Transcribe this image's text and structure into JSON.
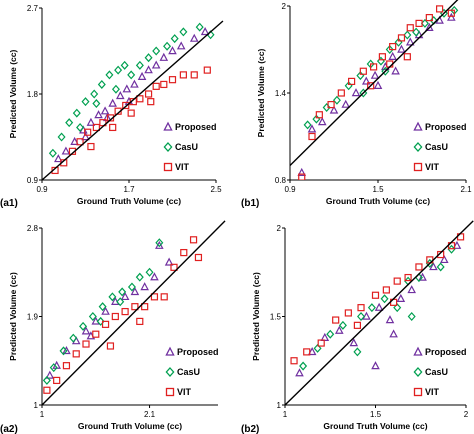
{
  "chart_data": [
    {
      "panel": "(a1)",
      "type": "scatter",
      "xlabel": "Ground Truth Volume (cc)",
      "ylabel": "Predicted Volume (cc)",
      "xlim": [
        0.9,
        2.5
      ],
      "ylim": [
        0.9,
        2.7
      ],
      "xticks": [
        "0.9",
        "1.7",
        "2.5"
      ],
      "yticks": [
        "0.9",
        "1.8",
        "2.7"
      ],
      "identity_line": true,
      "legend_position": "bottom-right",
      "series": [
        {
          "name": "Proposed",
          "color": "#7030A0",
          "marker": "triangle",
          "points": [
            [
              1.05,
              1.12
            ],
            [
              1.12,
              1.2
            ],
            [
              1.2,
              1.3
            ],
            [
              1.28,
              1.42
            ],
            [
              1.35,
              1.5
            ],
            [
              1.42,
              1.58
            ],
            [
              1.48,
              1.62
            ],
            [
              1.55,
              1.7
            ],
            [
              1.62,
              1.78
            ],
            [
              1.68,
              1.85
            ],
            [
              1.75,
              1.9
            ],
            [
              1.82,
              1.98
            ],
            [
              1.88,
              2.05
            ],
            [
              1.95,
              2.1
            ],
            [
              2.02,
              2.18
            ],
            [
              2.1,
              2.25
            ],
            [
              2.18,
              2.3
            ],
            [
              2.3,
              2.38
            ],
            [
              2.4,
              2.45
            ],
            [
              1.3,
              1.35
            ],
            [
              1.5,
              1.55
            ],
            [
              1.7,
              1.72
            ]
          ]
        },
        {
          "name": "CasU",
          "color": "#00A050",
          "marker": "diamond",
          "points": [
            [
              1.0,
              1.18
            ],
            [
              1.08,
              1.35
            ],
            [
              1.15,
              1.5
            ],
            [
              1.22,
              1.6
            ],
            [
              1.3,
              1.72
            ],
            [
              1.38,
              1.8
            ],
            [
              1.45,
              1.9
            ],
            [
              1.52,
              2.0
            ],
            [
              1.6,
              2.05
            ],
            [
              1.66,
              2.1
            ],
            [
              1.72,
              2.0
            ],
            [
              1.8,
              2.1
            ],
            [
              1.88,
              2.18
            ],
            [
              1.95,
              2.25
            ],
            [
              2.05,
              2.3
            ],
            [
              2.12,
              2.38
            ],
            [
              2.2,
              2.45
            ],
            [
              2.35,
              2.5
            ],
            [
              2.45,
              2.42
            ],
            [
              1.25,
              1.45
            ],
            [
              1.4,
              1.7
            ],
            [
              1.58,
              1.85
            ]
          ]
        },
        {
          "name": "VIT",
          "color": "#E02020",
          "marker": "square",
          "points": [
            [
              1.02,
              1.0
            ],
            [
              1.1,
              1.08
            ],
            [
              1.18,
              1.2
            ],
            [
              1.25,
              1.3
            ],
            [
              1.32,
              1.4
            ],
            [
              1.4,
              1.45
            ],
            [
              1.46,
              1.5
            ],
            [
              1.53,
              1.55
            ],
            [
              1.6,
              1.62
            ],
            [
              1.67,
              1.68
            ],
            [
              1.74,
              1.72
            ],
            [
              1.8,
              1.75
            ],
            [
              1.88,
              1.8
            ],
            [
              1.95,
              1.88
            ],
            [
              2.02,
              1.9
            ],
            [
              2.1,
              1.95
            ],
            [
              2.2,
              2.0
            ],
            [
              2.3,
              2.0
            ],
            [
              2.42,
              2.05
            ],
            [
              1.35,
              1.25
            ],
            [
              1.55,
              1.45
            ],
            [
              1.72,
              1.6
            ],
            [
              1.9,
              1.72
            ]
          ]
        }
      ]
    },
    {
      "panel": "(b1)",
      "type": "scatter",
      "xlabel": "Ground Truth Volume (cc)",
      "ylabel": "Predicted Volume (cc)",
      "xlim": [
        0.9,
        2.1
      ],
      "ylim": [
        0.8,
        2.0
      ],
      "xticks": [
        "0.9",
        "1.5",
        "2.1"
      ],
      "yticks": [
        "0.8",
        "1.4",
        "2"
      ],
      "identity_line": true,
      "legend_position": "bottom-right",
      "series": [
        {
          "name": "Proposed",
          "color": "#7030A0",
          "marker": "triangle",
          "points": [
            [
              0.98,
              0.85
            ],
            [
              1.05,
              1.15
            ],
            [
              1.12,
              1.2
            ],
            [
              1.2,
              1.28
            ],
            [
              1.28,
              1.32
            ],
            [
              1.35,
              1.4
            ],
            [
              1.42,
              1.48
            ],
            [
              1.48,
              1.52
            ],
            [
              1.55,
              1.58
            ],
            [
              1.6,
              1.65
            ],
            [
              1.66,
              1.7
            ],
            [
              1.72,
              1.75
            ],
            [
              1.78,
              1.8
            ],
            [
              1.85,
              1.85
            ],
            [
              1.92,
              1.9
            ],
            [
              2.0,
              1.92
            ],
            [
              1.5,
              1.45
            ],
            [
              1.62,
              1.55
            ]
          ]
        },
        {
          "name": "CasU",
          "color": "#00A050",
          "marker": "diamond",
          "points": [
            [
              1.02,
              1.18
            ],
            [
              1.08,
              1.22
            ],
            [
              1.15,
              1.3
            ],
            [
              1.22,
              1.35
            ],
            [
              1.3,
              1.45
            ],
            [
              1.38,
              1.52
            ],
            [
              1.45,
              1.6
            ],
            [
              1.52,
              1.62
            ],
            [
              1.58,
              1.7
            ],
            [
              1.64,
              1.75
            ],
            [
              1.7,
              1.8
            ],
            [
              1.76,
              1.82
            ],
            [
              1.82,
              1.88
            ],
            [
              1.88,
              1.9
            ],
            [
              1.95,
              1.95
            ],
            [
              2.02,
              1.97
            ],
            [
              1.4,
              1.4
            ],
            [
              1.55,
              1.55
            ]
          ]
        },
        {
          "name": "VIT",
          "color": "#E02020",
          "marker": "square",
          "points": [
            [
              0.98,
              0.82
            ],
            [
              1.05,
              1.1
            ],
            [
              1.1,
              1.25
            ],
            [
              1.18,
              1.32
            ],
            [
              1.25,
              1.4
            ],
            [
              1.32,
              1.48
            ],
            [
              1.4,
              1.55
            ],
            [
              1.47,
              1.58
            ],
            [
              1.53,
              1.65
            ],
            [
              1.6,
              1.72
            ],
            [
              1.66,
              1.78
            ],
            [
              1.72,
              1.85
            ],
            [
              1.78,
              1.88
            ],
            [
              1.85,
              1.92
            ],
            [
              1.92,
              1.98
            ],
            [
              2.0,
              1.95
            ],
            [
              1.45,
              1.45
            ],
            [
              1.58,
              1.6
            ],
            [
              1.7,
              1.65
            ]
          ]
        }
      ]
    },
    {
      "panel": "(a2)",
      "type": "scatter",
      "xlabel": "Ground Truth Volume (cc)",
      "ylabel": "Predicted Volume (cc)",
      "xlim": [
        1.0,
        2.8
      ],
      "ylim": [
        1.0,
        2.8
      ],
      "xticks": [
        "1",
        "2.1"
      ],
      "yticks": [
        "1",
        "1.9",
        "2.8"
      ],
      "identity_line": true,
      "legend_position": "bottom-right",
      "series": [
        {
          "name": "Proposed",
          "color": "#7030A0",
          "marker": "triangle",
          "points": [
            [
              1.08,
              1.3
            ],
            [
              1.15,
              1.4
            ],
            [
              1.25,
              1.55
            ],
            [
              1.35,
              1.65
            ],
            [
              1.45,
              1.75
            ],
            [
              1.55,
              1.85
            ],
            [
              1.65,
              1.95
            ],
            [
              1.75,
              2.05
            ],
            [
              1.85,
              2.1
            ],
            [
              1.95,
              2.15
            ],
            [
              2.05,
              2.2
            ],
            [
              2.15,
              2.3
            ],
            [
              2.2,
              2.62
            ],
            [
              2.3,
              2.45
            ],
            [
              1.5,
              1.7
            ]
          ]
        },
        {
          "name": "CasU",
          "color": "#00A050",
          "marker": "diamond",
          "points": [
            [
              1.05,
              1.25
            ],
            [
              1.12,
              1.38
            ],
            [
              1.22,
              1.55
            ],
            [
              1.32,
              1.68
            ],
            [
              1.42,
              1.8
            ],
            [
              1.52,
              1.9
            ],
            [
              1.62,
              2.0
            ],
            [
              1.72,
              2.1
            ],
            [
              1.82,
              2.15
            ],
            [
              1.92,
              2.2
            ],
            [
              2.0,
              2.3
            ],
            [
              2.1,
              2.35
            ],
            [
              2.2,
              2.65
            ],
            [
              1.6,
              1.85
            ],
            [
              1.8,
              2.05
            ]
          ]
        },
        {
          "name": "VIT",
          "color": "#E02020",
          "marker": "square",
          "points": [
            [
              1.05,
              1.15
            ],
            [
              1.15,
              1.25
            ],
            [
              1.25,
              1.4
            ],
            [
              1.35,
              1.52
            ],
            [
              1.45,
              1.62
            ],
            [
              1.55,
              1.72
            ],
            [
              1.65,
              1.82
            ],
            [
              1.75,
              1.9
            ],
            [
              1.85,
              1.95
            ],
            [
              1.95,
              2.0
            ],
            [
              2.05,
              2.0
            ],
            [
              2.15,
              2.1
            ],
            [
              2.25,
              2.1
            ],
            [
              2.35,
              2.4
            ],
            [
              2.45,
              2.55
            ],
            [
              2.55,
              2.68
            ],
            [
              2.6,
              2.5
            ],
            [
              1.7,
              1.6
            ],
            [
              2.0,
              1.85
            ]
          ]
        }
      ]
    },
    {
      "panel": "(b2)",
      "type": "scatter",
      "xlabel": "Ground Truth Volume (cc)",
      "ylabel": "Predicted Volume (cc)",
      "xlim": [
        1.0,
        2.0
      ],
      "ylim": [
        1.0,
        2.0
      ],
      "xticks": [
        "1",
        "1.5",
        "2"
      ],
      "yticks": [
        "1",
        "1.5",
        "2"
      ],
      "identity_line": true,
      "legend_position": "bottom-right",
      "series": [
        {
          "name": "Proposed",
          "color": "#7030A0",
          "marker": "triangle",
          "points": [
            [
              1.08,
              1.18
            ],
            [
              1.15,
              1.3
            ],
            [
              1.22,
              1.38
            ],
            [
              1.3,
              1.42
            ],
            [
              1.38,
              1.35
            ],
            [
              1.45,
              1.5
            ],
            [
              1.52,
              1.55
            ],
            [
              1.58,
              1.48
            ],
            [
              1.64,
              1.6
            ],
            [
              1.7,
              1.65
            ],
            [
              1.76,
              1.72
            ],
            [
              1.82,
              1.78
            ],
            [
              1.88,
              1.82
            ],
            [
              1.95,
              1.9
            ],
            [
              1.5,
              1.22
            ],
            [
              1.6,
              1.4
            ]
          ]
        },
        {
          "name": "CasU",
          "color": "#00A050",
          "marker": "diamond",
          "points": [
            [
              1.1,
              1.22
            ],
            [
              1.18,
              1.32
            ],
            [
              1.25,
              1.4
            ],
            [
              1.32,
              1.45
            ],
            [
              1.4,
              1.3
            ],
            [
              1.48,
              1.55
            ],
            [
              1.55,
              1.6
            ],
            [
              1.62,
              1.55
            ],
            [
              1.68,
              1.7
            ],
            [
              1.74,
              1.72
            ],
            [
              1.8,
              1.8
            ],
            [
              1.86,
              1.78
            ],
            [
              1.92,
              1.88
            ],
            [
              1.42,
              1.5
            ],
            [
              1.7,
              1.5
            ]
          ]
        },
        {
          "name": "VIT",
          "color": "#E02020",
          "marker": "square",
          "points": [
            [
              1.05,
              1.25
            ],
            [
              1.12,
              1.3
            ],
            [
              1.2,
              1.35
            ],
            [
              1.28,
              1.48
            ],
            [
              1.35,
              1.52
            ],
            [
              1.42,
              1.55
            ],
            [
              1.5,
              1.62
            ],
            [
              1.56,
              1.65
            ],
            [
              1.62,
              1.7
            ],
            [
              1.68,
              1.72
            ],
            [
              1.74,
              1.78
            ],
            [
              1.8,
              1.82
            ],
            [
              1.86,
              1.85
            ],
            [
              1.92,
              1.9
            ],
            [
              1.97,
              1.95
            ],
            [
              1.4,
              1.45
            ],
            [
              1.6,
              1.58
            ]
          ]
        }
      ]
    }
  ]
}
